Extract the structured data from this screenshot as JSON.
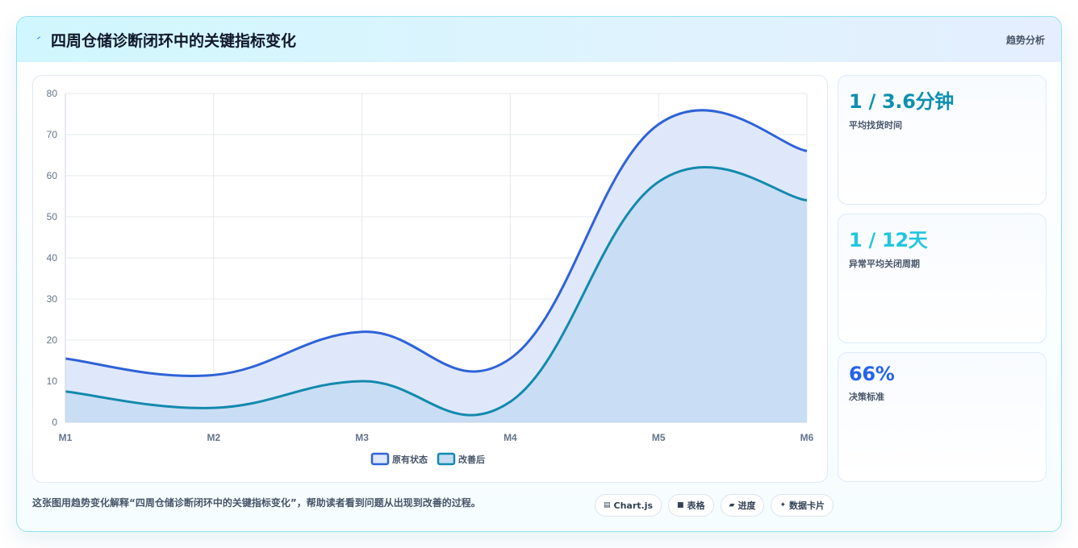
{
  "header": {
    "icon": "lightning-icon",
    "title": "四周仓储诊断闭环中的关键指标变化",
    "tag": "趋势分析"
  },
  "kpis": [
    {
      "value": "1 / 3.6分钟",
      "label": "平均找货时间",
      "color": "#0e8fb0"
    },
    {
      "value": "1 / 12天",
      "label": "异常平均关闭周期",
      "color": "#22c6de"
    },
    {
      "value": "66%",
      "label": "决策标准",
      "color": "#2563eb"
    }
  ],
  "footer": {
    "note": "这张图用趋势变化解释“四周仓储诊断闭环中的关键指标变化”，帮助读者看到问题从出现到改善的过程。",
    "chips": [
      {
        "icon": "chart-icon",
        "glyph": "▤",
        "label": "Chart.js"
      },
      {
        "icon": "table-icon",
        "glyph": "■",
        "label": "表格"
      },
      {
        "icon": "progress-icon",
        "glyph": "▰",
        "label": "进度"
      },
      {
        "icon": "card-icon",
        "glyph": "✦",
        "label": "数据卡片"
      }
    ]
  },
  "chart_data": {
    "type": "area",
    "categories": [
      "M1",
      "M2",
      "M3",
      "M4",
      "M5",
      "M6"
    ],
    "series": [
      {
        "name": "原有状态",
        "values": [
          15.5,
          11.5,
          22,
          15.5,
          72.5,
          66
        ],
        "color": "#2f62d8",
        "fill": "#dfe8fb"
      },
      {
        "name": "改善后",
        "values": [
          7.5,
          3.5,
          10,
          5,
          58.5,
          54
        ],
        "color": "#1389ad",
        "fill": "#c5dcf2"
      }
    ],
    "ylim": [
      0,
      80
    ],
    "yticks": [
      0,
      10,
      20,
      30,
      40,
      50,
      60,
      70,
      80
    ],
    "grid": true,
    "legend": "bottom"
  }
}
